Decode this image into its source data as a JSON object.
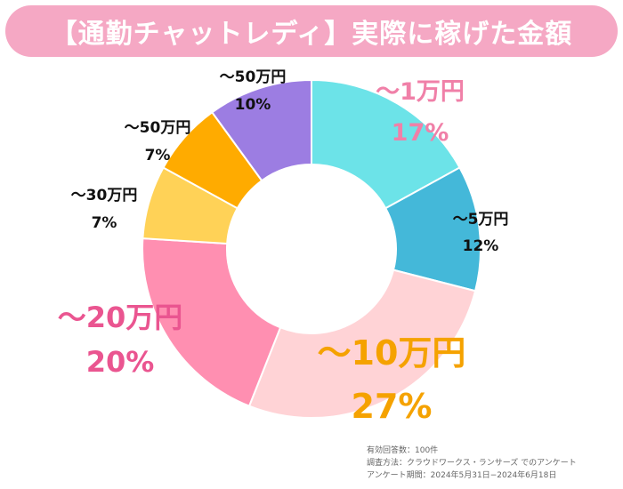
{
  "title": "【通勤チャットレディ】実際に稼げた金額",
  "colors": {
    "banner": "#f5a8c4",
    "title_text": "#ffffff"
  },
  "chart_data": {
    "type": "pie",
    "donut": true,
    "title": "【通勤チャットレディ】実際に稼げた金額",
    "unit": "%",
    "slices": [
      {
        "label": "〜1万円",
        "value": 17,
        "color": "#6ce3e8",
        "label_color": "#f080a8"
      },
      {
        "label": "〜5万円",
        "value": 12,
        "color": "#44b8d9",
        "label_color": "#111111"
      },
      {
        "label": "〜10万円",
        "value": 27,
        "color": "#ffd3d6",
        "label_color": "#f5a200"
      },
      {
        "label": "〜20万円",
        "value": 20,
        "color": "#ff8fb1",
        "label_color": "#ea5590"
      },
      {
        "label": "〜30万円",
        "value": 7,
        "color": "#ffd257",
        "label_color": "#111111"
      },
      {
        "label": "〜50万円",
        "value": 7,
        "color": "#ffab00",
        "label_color": "#111111"
      },
      {
        "label": "〜50万円",
        "value": 10,
        "color": "#9c7de2",
        "label_color": "#111111"
      }
    ]
  },
  "footnote": {
    "line1": "有効回答数：100件",
    "line2": "調査方法：クラウドワークス・ランサーズ でのアンケート",
    "line3": "アンケート期間：2024年5月31日−2024年6月18日"
  }
}
